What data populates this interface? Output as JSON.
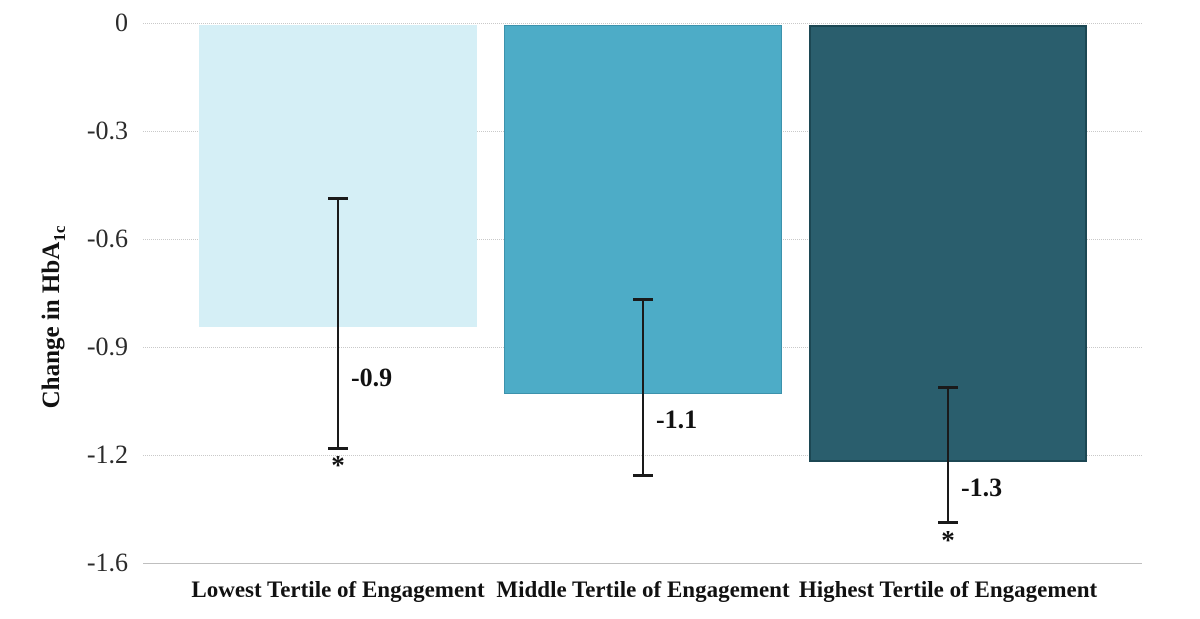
{
  "chart_data": {
    "type": "bar",
    "title": "",
    "categories": [
      "Lowest Tertile of Engagement",
      "Middle Tertile of Engagement",
      "Highest Tertile of Engagement"
    ],
    "values": [
      -0.9,
      -1.1,
      -1.3
    ],
    "value_labels": [
      "-0.9",
      "-1.1",
      "-1.3"
    ],
    "error_bars": [
      {
        "high": -0.52,
        "low": -1.26
      },
      {
        "high": -0.82,
        "low": -1.34
      },
      {
        "high": -1.08,
        "low": -1.48
      }
    ],
    "significant": [
      true,
      false,
      true
    ],
    "significance_marker": "*",
    "bar_colors": [
      "#d5eff6",
      "#4dacc7",
      "#2a5e6d"
    ],
    "bar_border_colors": [
      "#d5eff6",
      "#3c92ac",
      "#1c4753"
    ],
    "xlabel": "",
    "ylabel": "Change in HbA1c",
    "ylabel_main": "Change in HbA",
    "ylabel_sub": "1c",
    "ylim": [
      0,
      -1.6
    ],
    "y_tick_labels": [
      "0",
      "-0.3",
      "-0.6",
      "-0.9",
      "-1.2",
      "-1.6"
    ],
    "grid": "horizontal-dotted",
    "legend": "none"
  }
}
